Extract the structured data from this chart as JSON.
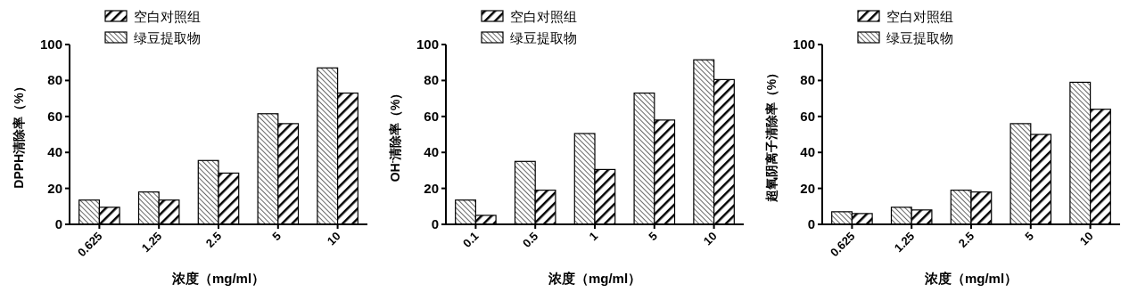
{
  "chart_data": [
    {
      "type": "bar",
      "categories": [
        "0.625",
        "1.25",
        "2.5",
        "5",
        "10"
      ],
      "xlabel": "浓度（mg/ml）",
      "ylabel": "DPPH清除率（%）",
      "ylim": [
        0,
        100
      ],
      "yticks": [
        0,
        20,
        40,
        60,
        80,
        100
      ],
      "legend": "top left",
      "series": [
        {
          "name": "绿豆提取物",
          "color": "#000000",
          "values": [
            13.5,
            18,
            35.5,
            61.5,
            87
          ]
        },
        {
          "name": "空白对照组",
          "color": "#000000",
          "values": [
            9.5,
            13.5,
            28.5,
            56,
            73
          ]
        }
      ]
    },
    {
      "type": "bar",
      "categories": [
        "0.1",
        "0.5",
        "1",
        "5",
        "10"
      ],
      "xlabel": "浓度（mg/ml）",
      "ylabel": "OH$^{-}$清除率（%）",
      "ylim": [
        0,
        100
      ],
      "yticks": [
        0,
        20,
        40,
        60,
        80,
        100
      ],
      "legend": "top left",
      "series": [
        {
          "name": "绿豆提取物",
          "color": "#000000",
          "values": [
            13.5,
            35,
            50.5,
            73,
            91.5
          ]
        },
        {
          "name": "空白对照组",
          "color": "#000000",
          "values": [
            5,
            19,
            30.5,
            58,
            80.5
          ]
        }
      ]
    },
    {
      "type": "bar",
      "categories": [
        "0.625",
        "1.25",
        "2.5",
        "5",
        "10"
      ],
      "xlabel": "浓度（mg/ml）",
      "ylabel": "超氧阴离子清除率（%）",
      "ylim": [
        0,
        100
      ],
      "yticks": [
        0,
        20,
        40,
        60,
        80,
        100
      ],
      "legend": "top left",
      "series": [
        {
          "name": "绿豆提取物",
          "color": "#000000",
          "values": [
            7,
            9.5,
            19,
            56,
            79
          ]
        },
        {
          "name": "空白对照组",
          "color": "#000000",
          "values": [
            6,
            8,
            18,
            50,
            64
          ]
        }
      ]
    }
  ]
}
